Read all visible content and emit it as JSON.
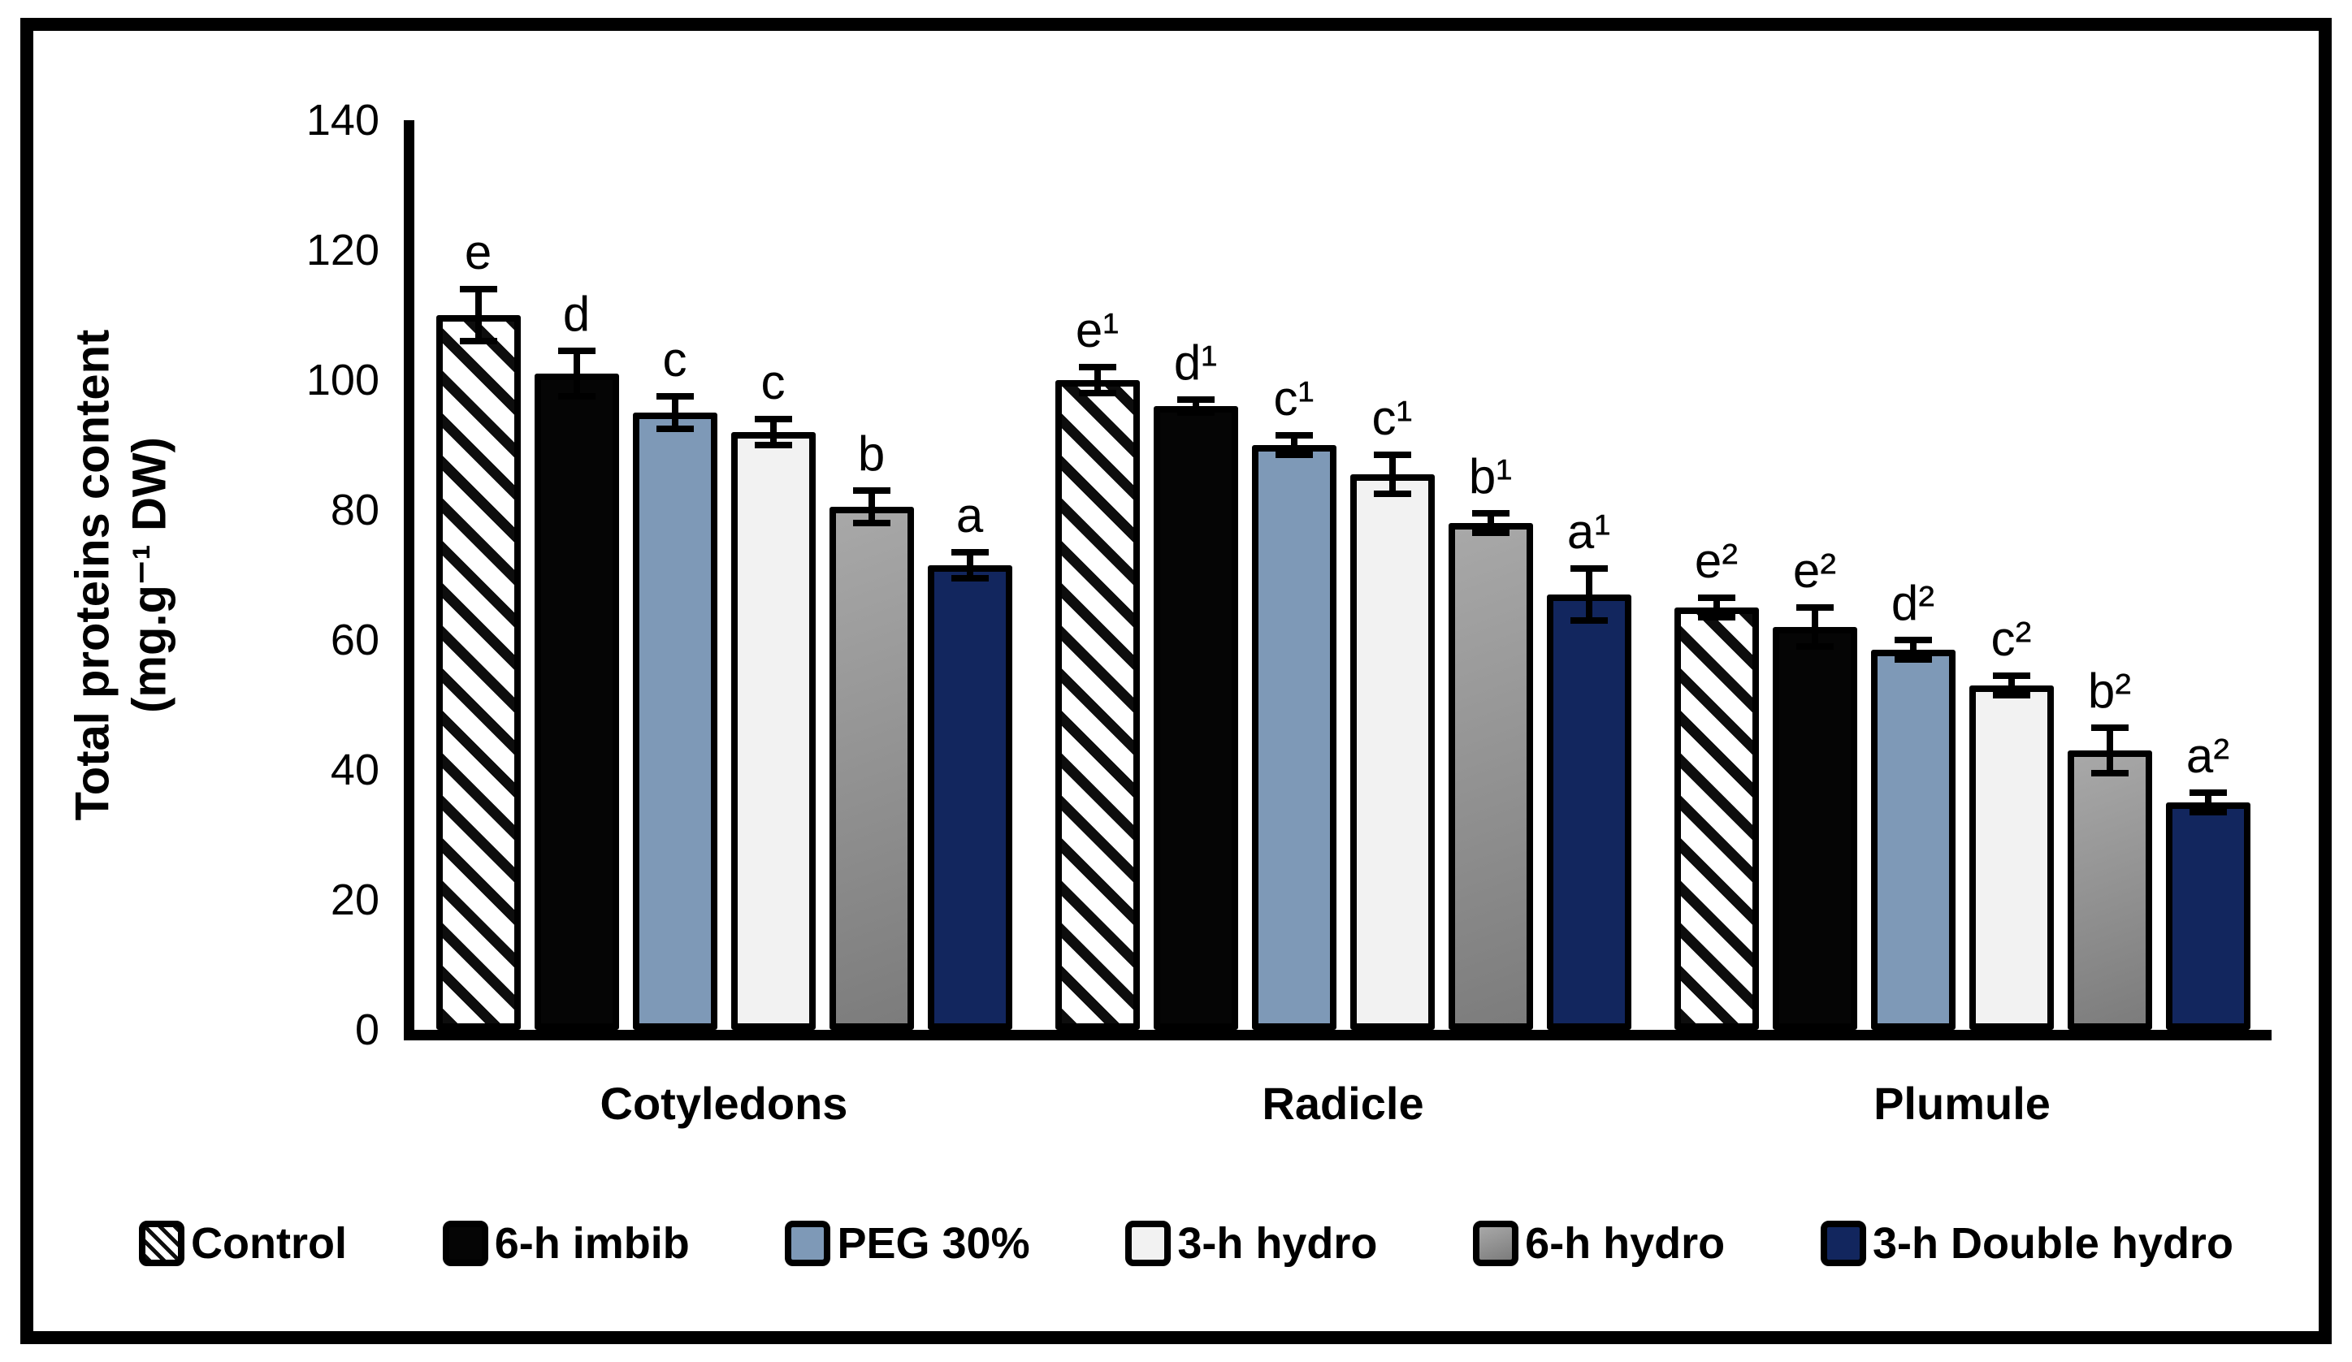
{
  "figure": {
    "frame_color": "#000000",
    "background": "#ffffff"
  },
  "chart_data": {
    "type": "bar",
    "title": "",
    "ylabel_line1": "Total proteins content",
    "ylabel_line2": "(mg.g⁻¹ DW)",
    "xlabel": "",
    "categories": [
      "Cotyledons",
      "Radicle",
      "Plumule"
    ],
    "ylim": [
      0,
      140
    ],
    "yticks": [
      0,
      20,
      40,
      60,
      80,
      100,
      120,
      140
    ],
    "grid": false,
    "legend_position": "bottom",
    "error_bar_color": "#000000",
    "series": [
      {
        "name": "Control",
        "style": "hatch",
        "fill": "#ffffff",
        "values": [
          110,
          100,
          65
        ],
        "errors": [
          4,
          2,
          1.5
        ],
        "letters": [
          "e",
          "e¹",
          "e²"
        ]
      },
      {
        "name": "6-h imbib",
        "style": "solid",
        "fill": "#050505",
        "values": [
          101,
          96,
          62
        ],
        "errors": [
          3.5,
          1,
          3
        ],
        "letters": [
          "d",
          "d¹",
          "e²"
        ]
      },
      {
        "name": "PEG 30%",
        "style": "solid",
        "fill": "#7e99b7",
        "values": [
          95,
          90,
          58.5
        ],
        "errors": [
          2.5,
          1.5,
          1.5
        ],
        "letters": [
          "c",
          "c¹",
          "d²"
        ]
      },
      {
        "name": "3-h hydro",
        "style": "solid",
        "fill": "#f2f2f2",
        "values": [
          92,
          85.5,
          53
        ],
        "errors": [
          2,
          3,
          1.5
        ],
        "letters": [
          "c",
          "c¹",
          "c²"
        ]
      },
      {
        "name": "6-h hydro",
        "style": "gradient",
        "fill": "#a8a8a8",
        "fill2": "#7c7c7c",
        "values": [
          80.5,
          78,
          43
        ],
        "errors": [
          2.5,
          1.5,
          3.5
        ],
        "letters": [
          "b",
          "b¹",
          "b²"
        ]
      },
      {
        "name": "3-h Double hydro",
        "style": "solid",
        "fill": "#12265e",
        "values": [
          71.5,
          67,
          35
        ],
        "errors": [
          2,
          4,
          1.5
        ],
        "letters": [
          "a",
          "a¹",
          "a²"
        ]
      }
    ]
  }
}
